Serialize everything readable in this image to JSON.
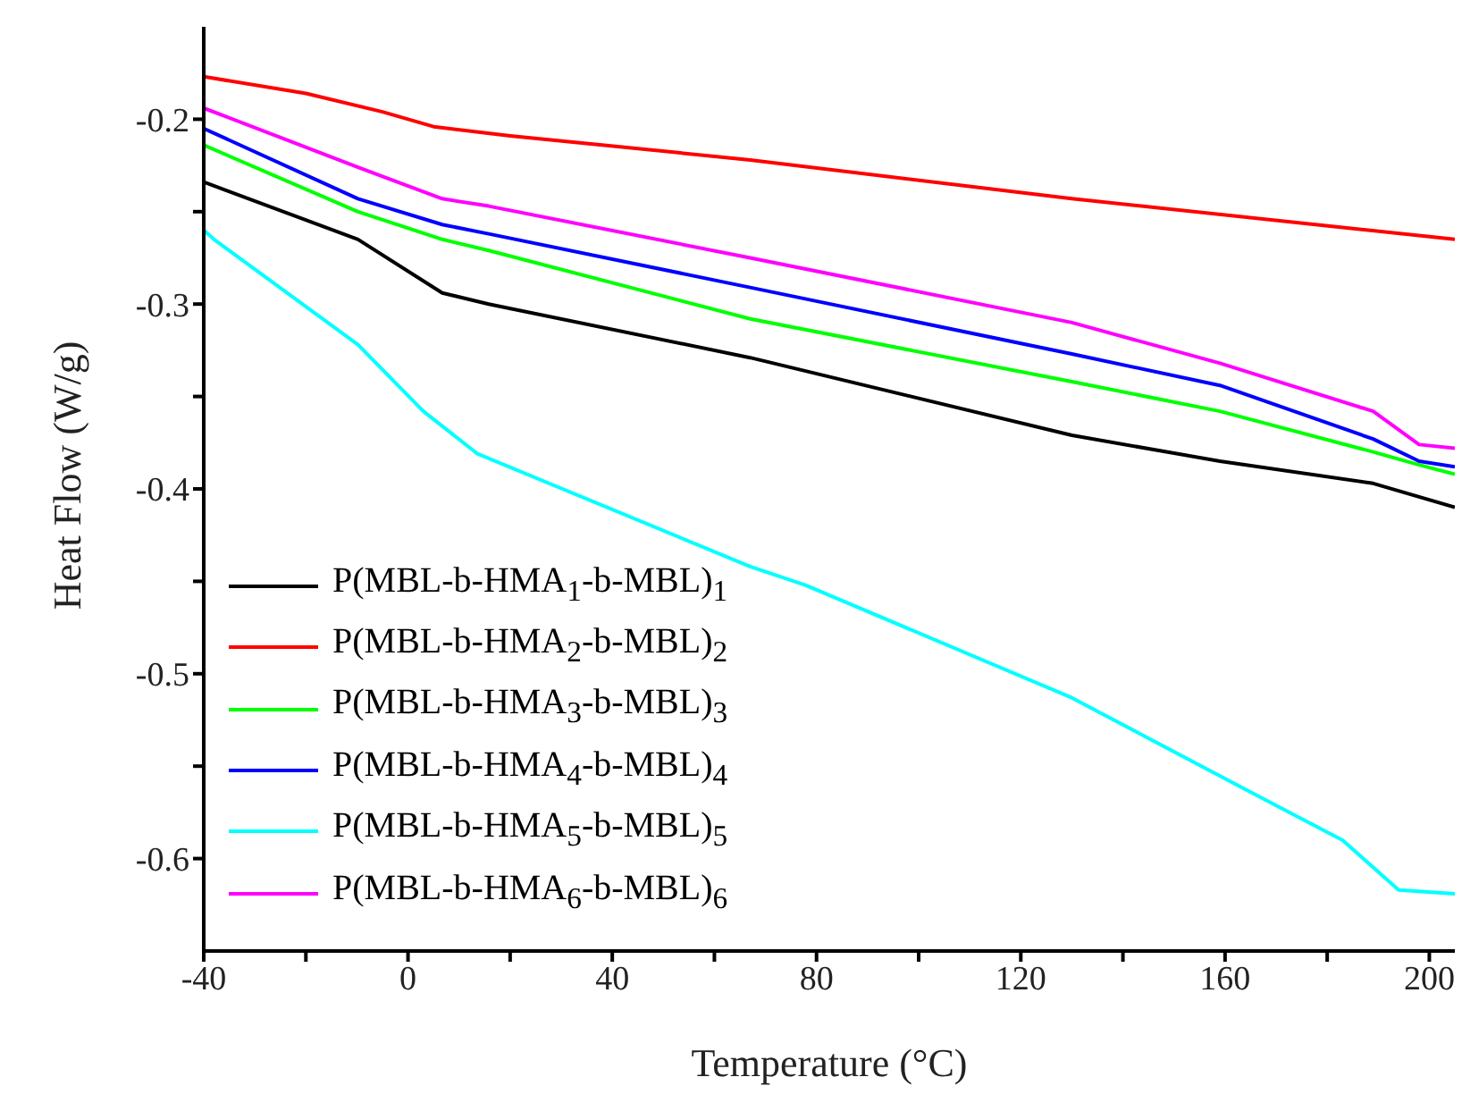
{
  "chart_data": {
    "type": "line",
    "xlabel": "Temperature (°C)",
    "ylabel": "Heat Flow (W/g)",
    "xlim": [
      -40,
      205
    ],
    "xticks": [
      -40,
      {
        "value": -20,
        "label": null
      },
      0,
      {
        "value": 20,
        "label": null
      },
      40,
      {
        "value": 60,
        "label": null
      },
      80,
      {
        "value": 100,
        "label": null
      },
      120,
      {
        "value": 140,
        "label": null
      },
      160,
      {
        "value": 180,
        "label": null
      },
      200
    ],
    "ylim": [
      -0.65,
      -0.15
    ],
    "yticks": [
      {
        "value": -0.6,
        "label": "-0.6"
      },
      {
        "value": -0.55,
        "label": null
      },
      {
        "value": -0.5,
        "label": "-0.5"
      },
      {
        "value": -0.45,
        "label": null
      },
      {
        "value": -0.4,
        "label": "-0.4"
      },
      {
        "value": -0.35,
        "label": null
      },
      {
        "value": -0.3,
        "label": "-0.3"
      },
      {
        "value": -0.25,
        "label": null
      },
      {
        "value": -0.2,
        "label": "-0.2"
      }
    ],
    "grid": false,
    "legend": "bottom left",
    "marker": "none",
    "line_style": "solid",
    "series": [
      {
        "name": "P(MBL-b-HMA$_{1}$-b-MBL)$_{1}$",
        "color": "#000000",
        "x": [
          -40,
          -9.8,
          6.7,
          15.8,
          67,
          130,
          159,
          189,
          205
        ],
        "values": [
          -0.234,
          -0.265,
          -0.294,
          -0.3,
          -0.329,
          -0.371,
          -0.385,
          -0.397,
          -0.41
        ]
      },
      {
        "name": "P(MBL-b-HMA$_{2}$-b-MBL)$_{2}$",
        "color": "#ff0000",
        "x": [
          -40,
          -20,
          -5,
          5,
          20,
          67,
          130,
          205
        ],
        "values": [
          -0.177,
          -0.186,
          -0.196,
          -0.204,
          -0.209,
          -0.222,
          -0.243,
          -0.265
        ]
      },
      {
        "name": "P(MBL-b-HMA$_{3}$-b-MBL)$_{3}$",
        "color": "#00ff00",
        "x": [
          -40,
          -9.8,
          6.7,
          15.8,
          67,
          130,
          159,
          189,
          198,
          205
        ],
        "values": [
          -0.214,
          -0.25,
          -0.265,
          -0.271,
          -0.308,
          -0.342,
          -0.358,
          -0.38,
          -0.387,
          -0.392
        ]
      },
      {
        "name": "P(MBL-b-HMA$_{4}$-b-MBL)$_{4}$",
        "color": "#0000ff",
        "x": [
          -40,
          -9.8,
          6.7,
          15.8,
          67,
          130,
          159,
          189,
          198,
          205
        ],
        "values": [
          -0.205,
          -0.243,
          -0.257,
          -0.262,
          -0.291,
          -0.327,
          -0.344,
          -0.373,
          -0.385,
          -0.388
        ]
      },
      {
        "name": "P(MBL-b-HMA$_{5}$-b-MBL)$_{5}$",
        "color": "#00ffff",
        "x": [
          -40,
          -38,
          -9.8,
          3,
          13.6,
          67,
          77.8,
          130,
          165,
          183,
          194,
          205
        ],
        "values": [
          -0.26,
          -0.265,
          -0.322,
          -0.358,
          -0.381,
          -0.442,
          -0.452,
          -0.513,
          -0.564,
          -0.59,
          -0.617,
          -0.619
        ]
      },
      {
        "name": "P(MBL-b-HMA$_{6}$-b-MBL)$_{6}$",
        "color": "#ff00ff",
        "x": [
          -40,
          -9.8,
          6.7,
          15.8,
          67,
          130,
          159,
          189,
          198,
          205
        ],
        "values": [
          -0.194,
          -0.226,
          -0.243,
          -0.247,
          -0.275,
          -0.31,
          -0.332,
          -0.358,
          -0.376,
          -0.378
        ]
      }
    ]
  }
}
